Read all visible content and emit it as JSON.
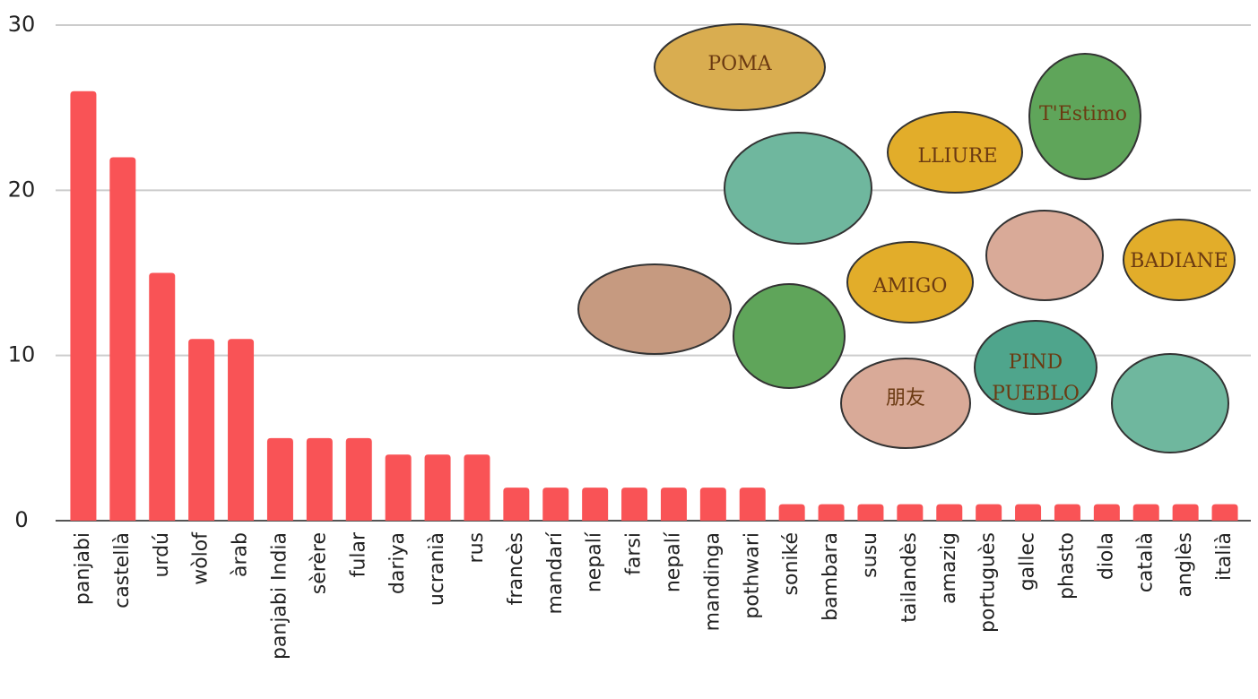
{
  "chart_data": {
    "type": "bar",
    "categories": [
      "panjabi",
      "castellà",
      "urdú",
      "wòlof",
      "àrab",
      "panjabi India",
      "sèrère",
      "fular",
      "dariya",
      "ucranià",
      "rus",
      "francès",
      "mandarí",
      "nepalí",
      "farsi",
      "nepalí",
      "mandinga",
      "pothwari",
      "soniké",
      "bambara",
      "susu",
      "tailandès",
      "amazig",
      "portuguès",
      "gallec",
      "phasto",
      "diola",
      "català",
      "anglès",
      "italià"
    ],
    "values": [
      26,
      22,
      15,
      11,
      11,
      5,
      5,
      5,
      4,
      4,
      4,
      2,
      2,
      2,
      2,
      2,
      2,
      2,
      1,
      1,
      1,
      1,
      1,
      1,
      1,
      1,
      1,
      1,
      1,
      1
    ],
    "color": "#f95356",
    "ylim": [
      0,
      30
    ],
    "yticks": [
      0,
      10,
      20,
      30
    ],
    "grid": true,
    "annotations": [
      "POMA",
      "LLIURE",
      "T'Estimo",
      "BADIANE",
      "PIND",
      "PUEBLO",
      "AMIGO",
      "朋友"
    ]
  }
}
